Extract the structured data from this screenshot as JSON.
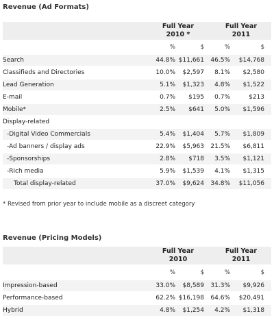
{
  "ad_formats": {
    "title": "Revenue (Ad Formats)",
    "col_groups": [
      {
        "line1": "Full Year",
        "line2": "2010 *"
      },
      {
        "line1": "Full Year",
        "line2": "2011"
      }
    ],
    "subheaders": [
      "%",
      "$",
      "%",
      "$"
    ],
    "rows": [
      {
        "label": "Search",
        "p2010": "44.8%",
        "d2010": "$11,661",
        "p2011": "46.5%",
        "d2011": "$14,768"
      },
      {
        "label": "Classifieds and Directories",
        "p2010": "10.0%",
        "d2010": "$2,597",
        "p2011": "8.1%",
        "d2011": "$2,580"
      },
      {
        "label": "Lead Generation",
        "p2010": "5.1%",
        "d2010": "$1,323",
        "p2011": "4.8%",
        "d2011": "$1,522"
      },
      {
        "label": "E-mail",
        "p2010": "0.7%",
        "d2010": "$195",
        "p2011": "0.7%",
        "d2011": "$213"
      },
      {
        "label": "Mobile*",
        "p2010": "2.5%",
        "d2010": "$641",
        "p2011": "5.0%",
        "d2011": "$1,596"
      },
      {
        "label": "Display-related",
        "p2010": "",
        "d2010": "",
        "p2011": "",
        "d2011": ""
      },
      {
        "label": "-Digital Video Commercials",
        "p2010": "5.4%",
        "d2010": "$1,404",
        "p2011": "5.7%",
        "d2011": "$1,809"
      },
      {
        "label": "-Ad banners / display ads",
        "p2010": "22.9%",
        "d2010": "$5,963",
        "p2011": "21.5%",
        "d2011": "$6,811"
      },
      {
        "label": "-Sponsorships",
        "p2010": "2.8%",
        "d2010": "$718",
        "p2011": "3.5%",
        "d2011": "$1,121"
      },
      {
        "label": "-Rich media",
        "p2010": "5.9%",
        "d2010": "$1,539",
        "p2011": "4.1%",
        "d2011": "$1,315"
      },
      {
        "label": "Total display-related",
        "p2010": "37.0%",
        "d2010": "$9,624",
        "p2011": "34.8%",
        "d2011": "$11,056"
      }
    ],
    "footnote": "* Revised from prior year to include mobile as a discreet category"
  },
  "pricing_models": {
    "title": "Revenue (Pricing Models)",
    "col_groups": [
      {
        "line1": "Full Year",
        "line2": "2010"
      },
      {
        "line1": "Full Year",
        "line2": "2011"
      }
    ],
    "subheaders": [
      "%",
      "$",
      "%",
      "$"
    ],
    "rows": [
      {
        "label": "Impression-based",
        "p2010": "33.0%",
        "d2010": "$8,589",
        "p2011": "31.3%",
        "d2011": "$9,926"
      },
      {
        "label": "Performance-based",
        "p2010": "62.2%",
        "d2010": "$16,198",
        "p2011": "64.6%",
        "d2011": "$20,491"
      },
      {
        "label": "Hybrid",
        "p2010": "4.8%",
        "d2010": "$1,254",
        "p2011": "4.2%",
        "d2011": "$1,318"
      }
    ]
  }
}
